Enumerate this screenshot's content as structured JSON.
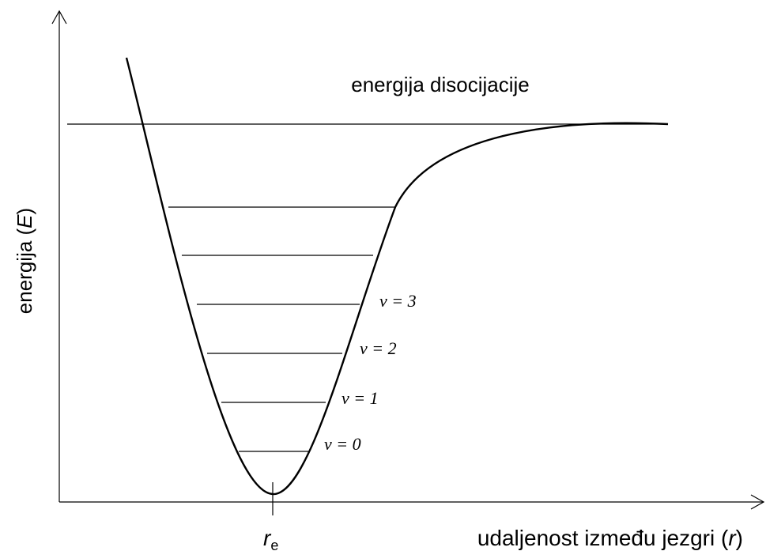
{
  "title": "energija disocijacije",
  "axis_labels": {
    "y": [
      "energija (",
      "E",
      ")"
    ],
    "x": [
      "udaljenost između jezgri (",
      "r",
      ")"
    ]
  },
  "equilibrium": {
    "symbol": "r",
    "subscript": "e"
  },
  "levels": [
    "v = 3",
    "v = 2",
    "v = 1",
    "v = 0"
  ]
}
